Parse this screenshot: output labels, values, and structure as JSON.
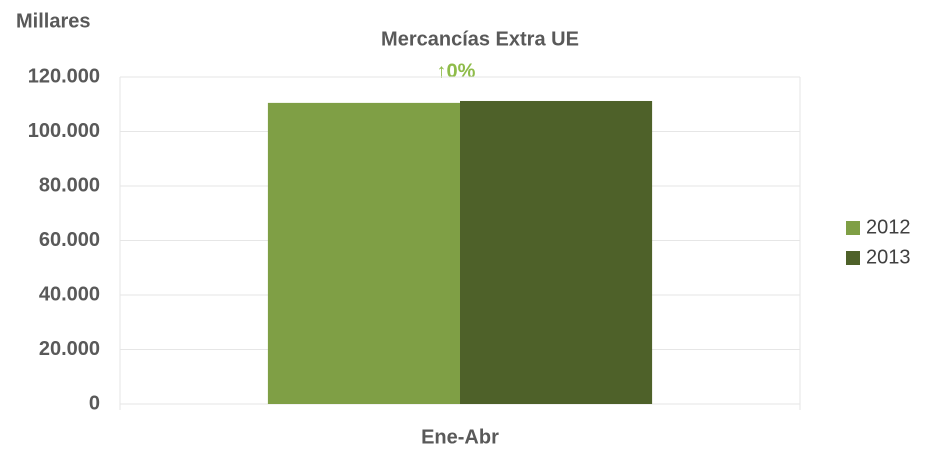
{
  "chart_data": {
    "type": "bar",
    "title": "Mercancías Extra UE",
    "ylabel": "Millares",
    "annotation": "↑0%",
    "categories": [
      "Ene-Abr"
    ],
    "series": [
      {
        "name": "2012",
        "color": "#7f9f45",
        "values": [
          110500
        ]
      },
      {
        "name": "2013",
        "color": "#4e6129",
        "values": [
          111200
        ]
      }
    ],
    "ylim": [
      0,
      120000
    ],
    "yticks": [
      0,
      {
        "value": 20000,
        "label": "20.000"
      },
      {
        "value": 40000,
        "label": "40.000"
      },
      {
        "value": 60000,
        "label": "60.000"
      },
      {
        "value": 80000,
        "label": "80.000"
      },
      {
        "value": 100000,
        "label": "100.000"
      },
      {
        "value": 120000,
        "label": "120.000"
      }
    ],
    "grid": true,
    "legend": "right"
  }
}
